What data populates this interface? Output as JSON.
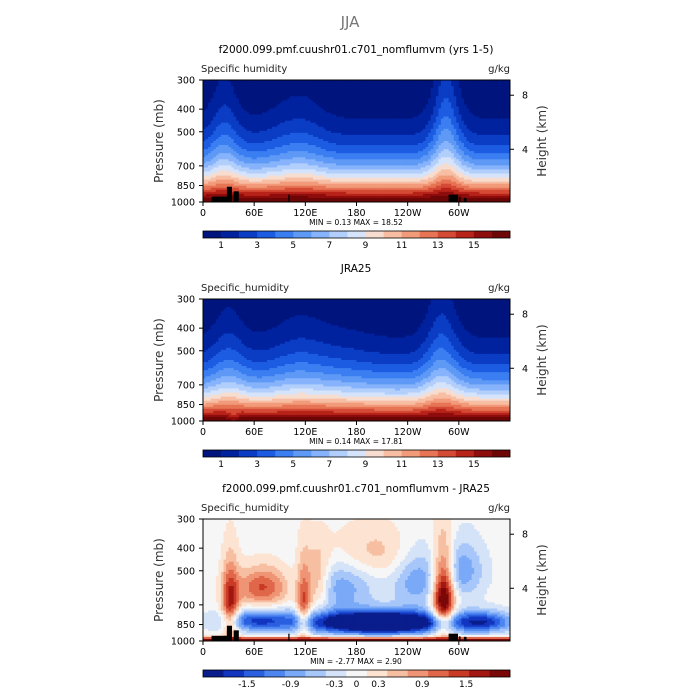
{
  "figure": {
    "title": "JJA"
  },
  "colors": {
    "abs_palette": [
      "#00147e",
      "#00229f",
      "#0a3dc4",
      "#1c5ce2",
      "#3a7ef2",
      "#5e99f6",
      "#86b3fb",
      "#b2cffc",
      "#d6e4fb",
      "#f6ddd0",
      "#f8bea4",
      "#f29b7b",
      "#e67455",
      "#d54a35",
      "#b72319",
      "#8f0c0c",
      "#6d0606"
    ],
    "diff_palette": [
      "#0a1d8c",
      "#1236c0",
      "#2a5fe0",
      "#4d85f1",
      "#7aa9f7",
      "#a7c6f9",
      "#d4e3f8",
      "#f6f6f6",
      "#fde3d2",
      "#f7bfa2",
      "#ef9474",
      "#e0674a",
      "#c93a25",
      "#a21712",
      "#7a0808"
    ],
    "land": "#000000"
  },
  "chart_data": [
    {
      "type": "heatmap",
      "title": "f2000.099.pmf.cuushr01.c701_nomflumvm (yrs 1-5)",
      "left_label": "Specific humidity",
      "right_label": "g/kg",
      "ylabel": "Pressure (mb)",
      "y2label": "Height (km)",
      "x_ticks": [
        "0",
        "60E",
        "120E",
        "180",
        "120W",
        "60W"
      ],
      "y_ticks": [
        "300",
        "400",
        "500",
        "700",
        "850",
        "1000"
      ],
      "y2_ticks": [
        "8",
        "4"
      ],
      "ylim": [
        1000,
        300
      ],
      "stats": {
        "min_label": "MIN =",
        "min": "0.13",
        "max_label": "MAX =",
        "max": "18.52"
      },
      "colorbar": {
        "levels": [
          "1",
          "3",
          "5",
          "7",
          "9",
          "11",
          "13",
          "15"
        ],
        "range": [
          0,
          17
        ]
      },
      "field": "model",
      "land_mask": true
    },
    {
      "type": "heatmap",
      "title": "JRA25",
      "left_label": "Specific_humidity",
      "right_label": "g/kg",
      "ylabel": "Pressure (mb)",
      "y2label": "Height (km)",
      "x_ticks": [
        "0",
        "60E",
        "120E",
        "180",
        "120W",
        "60W"
      ],
      "y_ticks": [
        "300",
        "400",
        "500",
        "700",
        "850",
        "1000"
      ],
      "y2_ticks": [
        "8",
        "4"
      ],
      "ylim": [
        1000,
        300
      ],
      "stats": {
        "min_label": "MIN =",
        "min": "0.14",
        "max_label": "MAX =",
        "max": "17.81"
      },
      "colorbar": {
        "levels": [
          "1",
          "3",
          "5",
          "7",
          "9",
          "11",
          "13",
          "15"
        ],
        "range": [
          0,
          17
        ]
      },
      "field": "obs",
      "land_mask": false
    },
    {
      "type": "heatmap",
      "title": "f2000.099.pmf.cuushr01.c701_nomflumvm - JRA25",
      "left_label": "Specific_humidity",
      "right_label": "g/kg",
      "ylabel": "Pressure (mb)",
      "y2label": "Height (km)",
      "x_ticks": [
        "0",
        "60E",
        "120E",
        "180",
        "120W",
        "60W"
      ],
      "y_ticks": [
        "300",
        "400",
        "500",
        "700",
        "850",
        "1000"
      ],
      "y2_ticks": [
        "8",
        "4"
      ],
      "ylim": [
        1000,
        300
      ],
      "stats": {
        "min_label": "MIN =",
        "min": "-2.77",
        "max_label": "MAX =",
        "max": "2.90"
      },
      "colorbar": {
        "levels": [
          "-1.5",
          "-0.9",
          "-0.3",
          "0",
          "0.3",
          "0.9",
          "1.5"
        ],
        "range": [
          -2.1,
          2.1
        ]
      },
      "field": "diff",
      "land_mask": true
    }
  ]
}
